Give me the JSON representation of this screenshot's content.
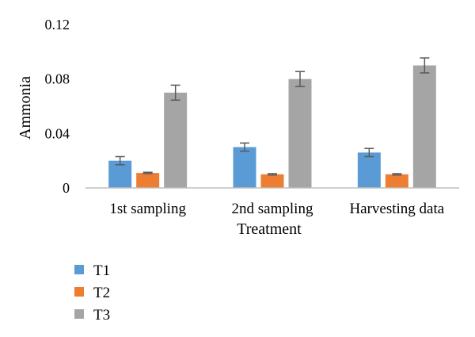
{
  "chart_data": {
    "type": "bar",
    "title": "",
    "xlabel": "Treatment",
    "ylabel": "Ammonia",
    "ylim": [
      0,
      0.12
    ],
    "yticks": [
      "0",
      "0.04",
      "0.08",
      "0.12"
    ],
    "ytick_values": [
      0,
      0.04,
      0.08,
      0.12
    ],
    "categories": [
      "1st sampling",
      "2nd sampling",
      "Harvesting data"
    ],
    "series": [
      {
        "name": "T1",
        "color": "#5b9bd5",
        "values": [
          0.02,
          0.03,
          0.026
        ],
        "errors": [
          0.003,
          0.003,
          0.003
        ]
      },
      {
        "name": "T2",
        "color": "#ed7d31",
        "values": [
          0.011,
          0.01,
          0.01
        ],
        "errors": [
          0.0005,
          0.0005,
          0.0005
        ]
      },
      {
        "name": "T3",
        "color": "#a5a5a5",
        "values": [
          0.07,
          0.08,
          0.09
        ],
        "errors": [
          0.0055,
          0.0055,
          0.0055
        ]
      }
    ],
    "grid": false,
    "legend": "bottom-left"
  }
}
